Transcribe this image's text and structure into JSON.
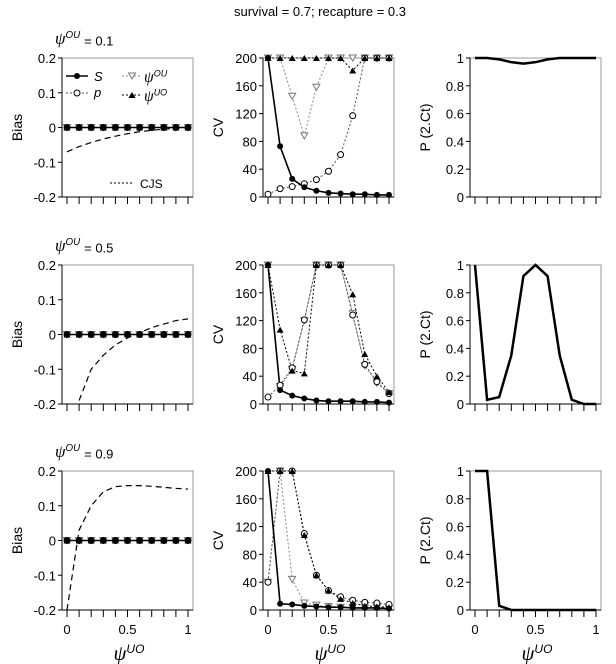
{
  "title": "survival = 0.7; recapture = 0.3",
  "chart_data": {
    "type": "line",
    "title": "survival = 0.7; recapture = 0.3",
    "x": [
      0,
      0.1,
      0.2,
      0.3,
      0.4,
      0.5,
      0.6,
      0.7,
      0.8,
      0.9,
      1
    ],
    "xticks": [
      "0",
      "0.5",
      "1"
    ],
    "xlabel": "ψ",
    "xlabel_sup": "UO",
    "legend": {
      "S": "S",
      "p": "p",
      "psiOU": "ψ",
      "psiOU_sup": "OU",
      "psiUO": "ψ",
      "psiUO_sup": "UO",
      "CJS": "CJS"
    },
    "rows": [
      {
        "label": "ψ",
        "label_sup": "OU",
        "label_val": "= 0.1",
        "bias": {
          "ylabel": "Bias",
          "ylim": [
            -0.2,
            0.2
          ],
          "yticks": [
            "0.2",
            "0.1",
            "0",
            "-0.1",
            "-0.2"
          ],
          "CJS": [
            -0.07,
            -0.055,
            -0.043,
            -0.033,
            -0.025,
            -0.018,
            -0.012,
            -0.008,
            -0.005,
            -0.002,
            0
          ]
        },
        "cv": {
          "ylabel": "CV",
          "ylim": [
            0,
            200
          ],
          "yticks": [
            "200",
            "160",
            "120",
            "80",
            "40",
            "0"
          ],
          "S": [
            200,
            73,
            26,
            14,
            9,
            6,
            5,
            4,
            4,
            3,
            3
          ],
          "p": [
            4,
            12,
            15,
            19,
            25,
            37,
            61,
            117,
            200,
            200,
            200
          ],
          "psiOU": [
            200,
            200,
            145,
            88,
            158,
            200,
            200,
            200,
            200,
            200,
            200
          ],
          "psiUO": [
            200,
            200,
            200,
            200,
            200,
            200,
            200,
            182,
            200,
            200,
            200
          ]
        },
        "p2ct": {
          "ylabel": "P (2.Ct)",
          "ylim": [
            0,
            1
          ],
          "yticks": [
            "1",
            "0.8",
            "0.6",
            "0.4",
            "0.2",
            "0"
          ],
          "values": [
            1,
            1,
            0.99,
            0.97,
            0.96,
            0.97,
            0.99,
            1,
            1,
            1,
            1
          ]
        }
      },
      {
        "label": "ψ",
        "label_sup": "OU",
        "label_val": "= 0.5",
        "bias": {
          "ylabel": "Bias",
          "ylim": [
            -0.2,
            0.2
          ],
          "yticks": [
            "0.2",
            "0.1",
            "0",
            "-0.1",
            "-0.2"
          ],
          "CJS": [
            null,
            -0.19,
            -0.1,
            -0.06,
            -0.03,
            -0.01,
            0.005,
            0.02,
            0.03,
            0.04,
            0.045
          ]
        },
        "cv": {
          "ylabel": "CV",
          "ylim": [
            0,
            200
          ],
          "yticks": [
            "200",
            "160",
            "120",
            "80",
            "40",
            "0"
          ],
          "S": [
            200,
            20,
            12,
            8,
            5,
            4,
            4,
            4,
            3,
            3,
            2
          ],
          "p": [
            10,
            27,
            52,
            121,
            200,
            200,
            200,
            128,
            57,
            32,
            15
          ],
          "psiOU": [
            200,
            25,
            50,
            120,
            200,
            200,
            200,
            130,
            55,
            30,
            15
          ],
          "psiUO": [
            200,
            107,
            48,
            44,
            200,
            200,
            200,
            158,
            72,
            40,
            17
          ]
        },
        "p2ct": {
          "ylabel": "P (2.Ct)",
          "ylim": [
            0,
            1
          ],
          "yticks": [
            "1",
            "0.8",
            "0.6",
            "0.4",
            "0.2",
            "0"
          ],
          "values": [
            1,
            0.03,
            0.05,
            0.35,
            0.92,
            1,
            0.92,
            0.35,
            0.03,
            0,
            0
          ]
        }
      },
      {
        "label": "ψ",
        "label_sup": "OU",
        "label_val": "= 0.9",
        "bias": {
          "ylabel": "Bias",
          "ylim": [
            -0.2,
            0.2
          ],
          "yticks": [
            "0.2",
            "0.1",
            "0",
            "-0.1",
            "-0.2"
          ],
          "CJS": [
            -0.2,
            0.03,
            0.1,
            0.14,
            0.155,
            0.158,
            0.158,
            0.156,
            0.153,
            0.15,
            0.148
          ]
        },
        "cv": {
          "ylabel": "CV",
          "ylim": [
            0,
            200
          ],
          "yticks": [
            "200",
            "160",
            "120",
            "80",
            "40",
            "0"
          ],
          "S": [
            200,
            9,
            8,
            6,
            5,
            4,
            4,
            3,
            3,
            3,
            2
          ],
          "p": [
            40,
            200,
            200,
            110,
            50,
            28,
            19,
            14,
            11,
            10,
            8
          ],
          "psiOU": [
            40,
            200,
            44,
            10,
            7,
            5,
            4,
            4,
            3,
            3,
            2
          ],
          "psiUO": [
            200,
            200,
            200,
            108,
            50,
            28,
            16,
            10,
            6,
            5,
            4
          ]
        },
        "p2ct": {
          "ylabel": "P (2.Ct)",
          "ylim": [
            0,
            1
          ],
          "yticks": [
            "1",
            "0.8",
            "0.6",
            "0.4",
            "0.2",
            "0"
          ],
          "values": [
            1,
            1,
            0.03,
            0,
            0,
            0,
            0,
            0,
            0,
            0,
            0
          ]
        }
      }
    ]
  }
}
